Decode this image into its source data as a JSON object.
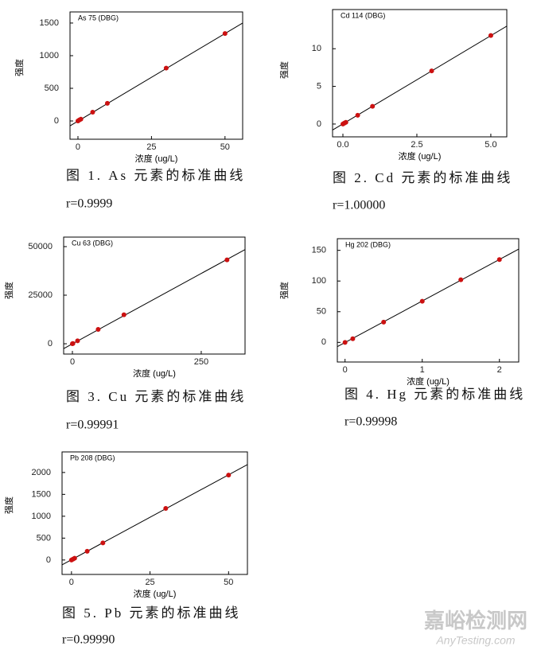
{
  "chart_data": [
    {
      "type": "scatter",
      "title": "As 75 (DBG)",
      "ylabel": "强度",
      "xlabel": "浓度 (ug/L)",
      "caption": "图 1. As 元素的标准曲线",
      "r_label": "r=0.9999",
      "x": [
        0,
        0.5,
        1,
        5,
        10,
        30,
        50
      ],
      "values": [
        0,
        15,
        27,
        135,
        270,
        810,
        1340
      ],
      "color": "#cc1111",
      "fit": {
        "x": [
          -2.7,
          56
        ],
        "values": [
          -75,
          1500
        ]
      },
      "xlim": [
        -2.7,
        56
      ],
      "ylim": [
        -280,
        1670
      ],
      "xticks": [
        0,
        25,
        50
      ],
      "yticks": [
        0,
        500,
        1000,
        1500
      ]
    },
    {
      "type": "scatter",
      "title": "Cd 114 (DBG)",
      "ylabel": "强度",
      "xlabel": "浓度 (ug/L)",
      "caption": "图 2. Cd 元素的标准曲线",
      "r_label": "r=1.00000",
      "x": [
        0,
        0.05,
        0.1,
        0.5,
        1,
        3,
        5
      ],
      "values": [
        0,
        0.12,
        0.23,
        1.17,
        2.35,
        7.05,
        11.75
      ],
      "color": "#cc1111",
      "fit": {
        "x": [
          -0.35,
          5.54
        ],
        "values": [
          -0.8,
          13.0
        ]
      },
      "xlim": [
        -0.35,
        5.54
      ],
      "ylim": [
        -1.7,
        15.2
      ],
      "xticks": [
        {
          "value": 0,
          "label": "0.0"
        },
        {
          "value": 2.5,
          "label": "2.5"
        },
        {
          "value": 5,
          "label": "5.0"
        }
      ],
      "yticks": [
        0,
        5,
        10
      ]
    },
    {
      "type": "scatter",
      "title": "Cu 63 (DBG)",
      "ylabel": "强度",
      "xlabel": "浓度 (ug/L)",
      "caption": "图 3. Cu 元素的标准曲线",
      "r_label": "r=0.99991",
      "x": [
        0,
        1,
        10,
        50,
        100,
        300
      ],
      "values": [
        0,
        150,
        1500,
        7400,
        14900,
        43200
      ],
      "color": "#cc1111",
      "fit": {
        "x": [
          -17,
          335
        ],
        "values": [
          -2500,
          48500
        ]
      },
      "xlim": [
        -17,
        335
      ],
      "ylim": [
        -5300,
        54900
      ],
      "xticks": [
        0,
        250
      ],
      "yticks": [
        0,
        25000,
        50000
      ]
    },
    {
      "type": "scatter",
      "title": "Hg 202 (DBG)",
      "ylabel": "强度",
      "xlabel": "浓度 (ug/L)",
      "caption": "图 4. Hg 元素的标准曲线",
      "r_label": "r=0.99998",
      "x": [
        0,
        0.1,
        0.5,
        1,
        1.5,
        2
      ],
      "values": [
        0,
        6,
        33,
        67,
        102,
        135
      ],
      "color": "#cc1111",
      "fit": {
        "x": [
          -0.1,
          2.25
        ],
        "values": [
          -7,
          152
        ]
      },
      "xlim": [
        -0.1,
        2.25
      ],
      "ylim": [
        -32,
        169
      ],
      "xticks": [
        0,
        1,
        2
      ],
      "yticks": [
        0,
        50,
        100,
        150
      ]
    },
    {
      "type": "scatter",
      "title": "Pb 208 (DBG)",
      "ylabel": "强度",
      "xlabel": "浓度 (ug/L)",
      "caption": "图 5. Pb 元素的标准曲线",
      "r_label": "r=0.99990",
      "x": [
        0,
        0.5,
        1,
        5,
        10,
        30,
        50
      ],
      "values": [
        0,
        20,
        40,
        200,
        390,
        1180,
        1940
      ],
      "color": "#cc1111",
      "fit": {
        "x": [
          -3,
          56
        ],
        "values": [
          -110,
          2180
        ]
      },
      "xlim": [
        -3,
        56
      ],
      "ylim": [
        -330,
        2470
      ],
      "xticks": [
        0,
        25,
        50
      ],
      "yticks": [
        0,
        500,
        1000,
        1500,
        2000
      ]
    }
  ],
  "watermark": {
    "title": "嘉峪检测网",
    "subtitle": "AnyTesting.com"
  }
}
